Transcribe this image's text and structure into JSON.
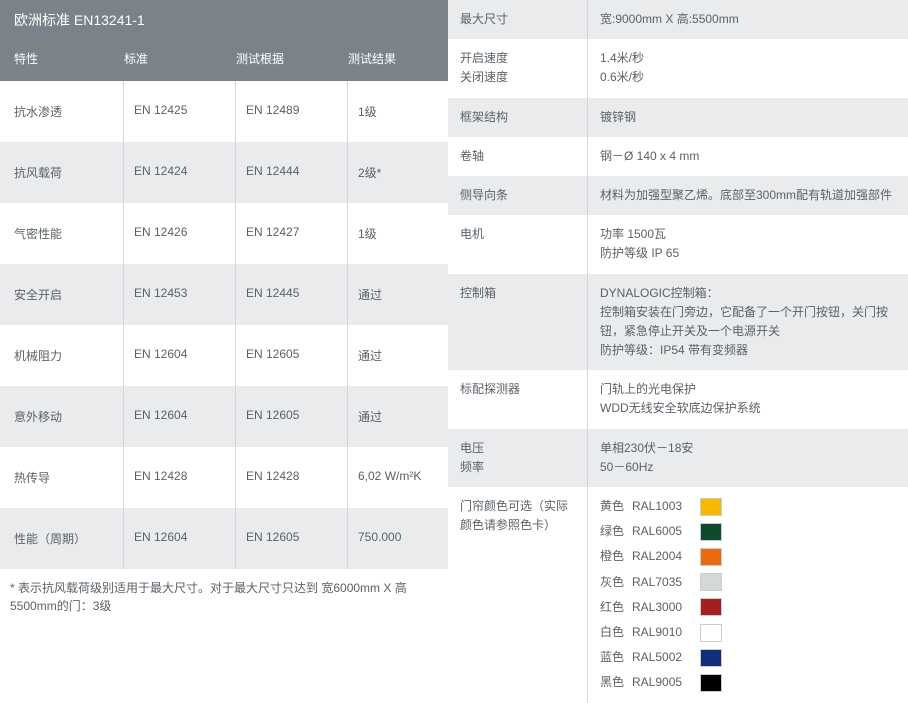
{
  "left": {
    "title": "欧洲标准 EN13241-1",
    "columns": [
      "特性",
      "标准",
      "测试根据",
      "测试结果"
    ],
    "rows": [
      {
        "c1": "抗水渗透",
        "c2": "EN 12425",
        "c3": "EN 12489",
        "c4": "1级"
      },
      {
        "c1": "抗风载荷",
        "c2": "EN 12424",
        "c3": "EN 12444",
        "c4": "2级*"
      },
      {
        "c1": "气密性能",
        "c2": "EN 12426",
        "c3": "EN 12427",
        "c4": "1级"
      },
      {
        "c1": "安全开启",
        "c2": "EN 12453",
        "c3": "EN 12445",
        "c4": "通过"
      },
      {
        "c1": "机械阻力",
        "c2": "EN 12604",
        "c3": "EN 12605",
        "c4": "通过"
      },
      {
        "c1": "意外移动",
        "c2": "EN 12604",
        "c3": "EN 12605",
        "c4": "通过"
      },
      {
        "c1": "热传导",
        "c2": "EN 12428",
        "c3": "EN 12428",
        "c4": "6,02 W/m²K"
      },
      {
        "c1": "性能（周期）",
        "c2": "EN 12604",
        "c3": "EN 12605",
        "c4": "750.000"
      }
    ],
    "footnote": "* 表示抗风载荷级别适用于最大尺寸。对于最大尺寸只达到 宽6000mm X 高5500mm的门：3级"
  },
  "right": {
    "rows": [
      {
        "label": "最大尺寸",
        "value": "宽:9000mm X 高:5500mm"
      },
      {
        "label": "开启速度\n关闭速度",
        "value": "1.4米/秒\n0.6米/秒"
      },
      {
        "label": "框架结构",
        "value": "镀锌钢"
      },
      {
        "label": "卷轴",
        "value": "钢－Ø 140 x 4 mm"
      },
      {
        "label": "侧导向条",
        "value": "材料为加强型聚乙烯。底部至300mm配有轨道加强部件"
      },
      {
        "label": "电机",
        "value": "功率 1500瓦\n防护等级 IP 65"
      },
      {
        "label": "控制箱",
        "value": "DYNALOGIC控制箱：\n控制箱安装在门旁边，它配备了一个开门按钮，关门按钮，紧急停止开关及一个电源开关\n防护等级：IP54 带有变频器"
      },
      {
        "label": "标配探测器",
        "value": "门轨上的光电保护\nWDD无线安全软底边保护系统"
      },
      {
        "label": "电压\n频率",
        "value": "单相230伏－18安\n50－60Hz"
      }
    ],
    "colors_label": "门帘颜色可选（实际颜色请参照色卡）",
    "colors": [
      {
        "name": "黄色",
        "code": "RAL1003",
        "hex": "#f9b800"
      },
      {
        "name": "绿色",
        "code": "RAL6005",
        "hex": "#0f4a2c"
      },
      {
        "name": "橙色",
        "code": "RAL2004",
        "hex": "#e96b10"
      },
      {
        "name": "灰色",
        "code": "RAL7035",
        "hex": "#d4d9d6"
      },
      {
        "name": "红色",
        "code": "RAL3000",
        "hex": "#a41f1f"
      },
      {
        "name": "白色",
        "code": "RAL9010",
        "hex": "#ffffff"
      },
      {
        "name": "蓝色",
        "code": "RAL5002",
        "hex": "#132e7a"
      },
      {
        "name": "黑色",
        "code": "RAL9005",
        "hex": "#000000"
      }
    ]
  },
  "style": {
    "header_bg": "#7a8389",
    "alt_bg": "#e9ebec",
    "text_color": "#5a6268"
  }
}
